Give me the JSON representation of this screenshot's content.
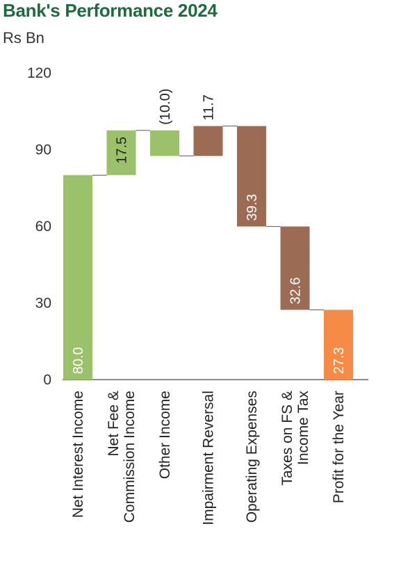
{
  "title": "Bank's Performance 2024",
  "unit": "Rs Bn",
  "colors": {
    "title": "#1f6b3f",
    "increase": "#9bc26a",
    "decrease": "#9c6b53",
    "total": "#f68b45",
    "connector": "#555555",
    "axis": "#444444"
  },
  "chart_data": {
    "type": "bar",
    "subtype": "waterfall",
    "title": "Bank's Performance 2024",
    "ylabel": "Rs Bn",
    "ylim": [
      0,
      120
    ],
    "yticks": [
      "0",
      "30",
      "60",
      "90",
      "120"
    ],
    "categories": [
      [
        "Net Interest Income"
      ],
      [
        "Net Fee &",
        "Commission Income"
      ],
      [
        "Other Income"
      ],
      [
        "Impairment Reversal"
      ],
      [
        "Operating Expenses"
      ],
      [
        "Taxes on FS &",
        "Income Tax"
      ],
      [
        "Profit for the Year"
      ]
    ],
    "bars": [
      {
        "start": 0,
        "end": 80.0,
        "label": "80.0",
        "kind": "increase",
        "label_pos": "inside-bottom"
      },
      {
        "start": 80.0,
        "end": 97.5,
        "label": "17.5",
        "kind": "increase",
        "label_pos": "inside-top"
      },
      {
        "start": 97.5,
        "end": 87.5,
        "label": "(10.0)",
        "kind": "increase",
        "label_pos": "above"
      },
      {
        "start": 87.5,
        "end": 99.2,
        "label": "11.7",
        "kind": "decrease",
        "label_pos": "above"
      },
      {
        "start": 99.2,
        "end": 59.9,
        "label": "39.3",
        "kind": "decrease",
        "label_pos": "inside-bottom"
      },
      {
        "start": 59.9,
        "end": 27.3,
        "label": "32.6",
        "kind": "decrease",
        "label_pos": "inside-bottom"
      },
      {
        "start": 0,
        "end": 27.3,
        "label": "27.3",
        "kind": "total",
        "label_pos": "inside-bottom"
      }
    ]
  }
}
